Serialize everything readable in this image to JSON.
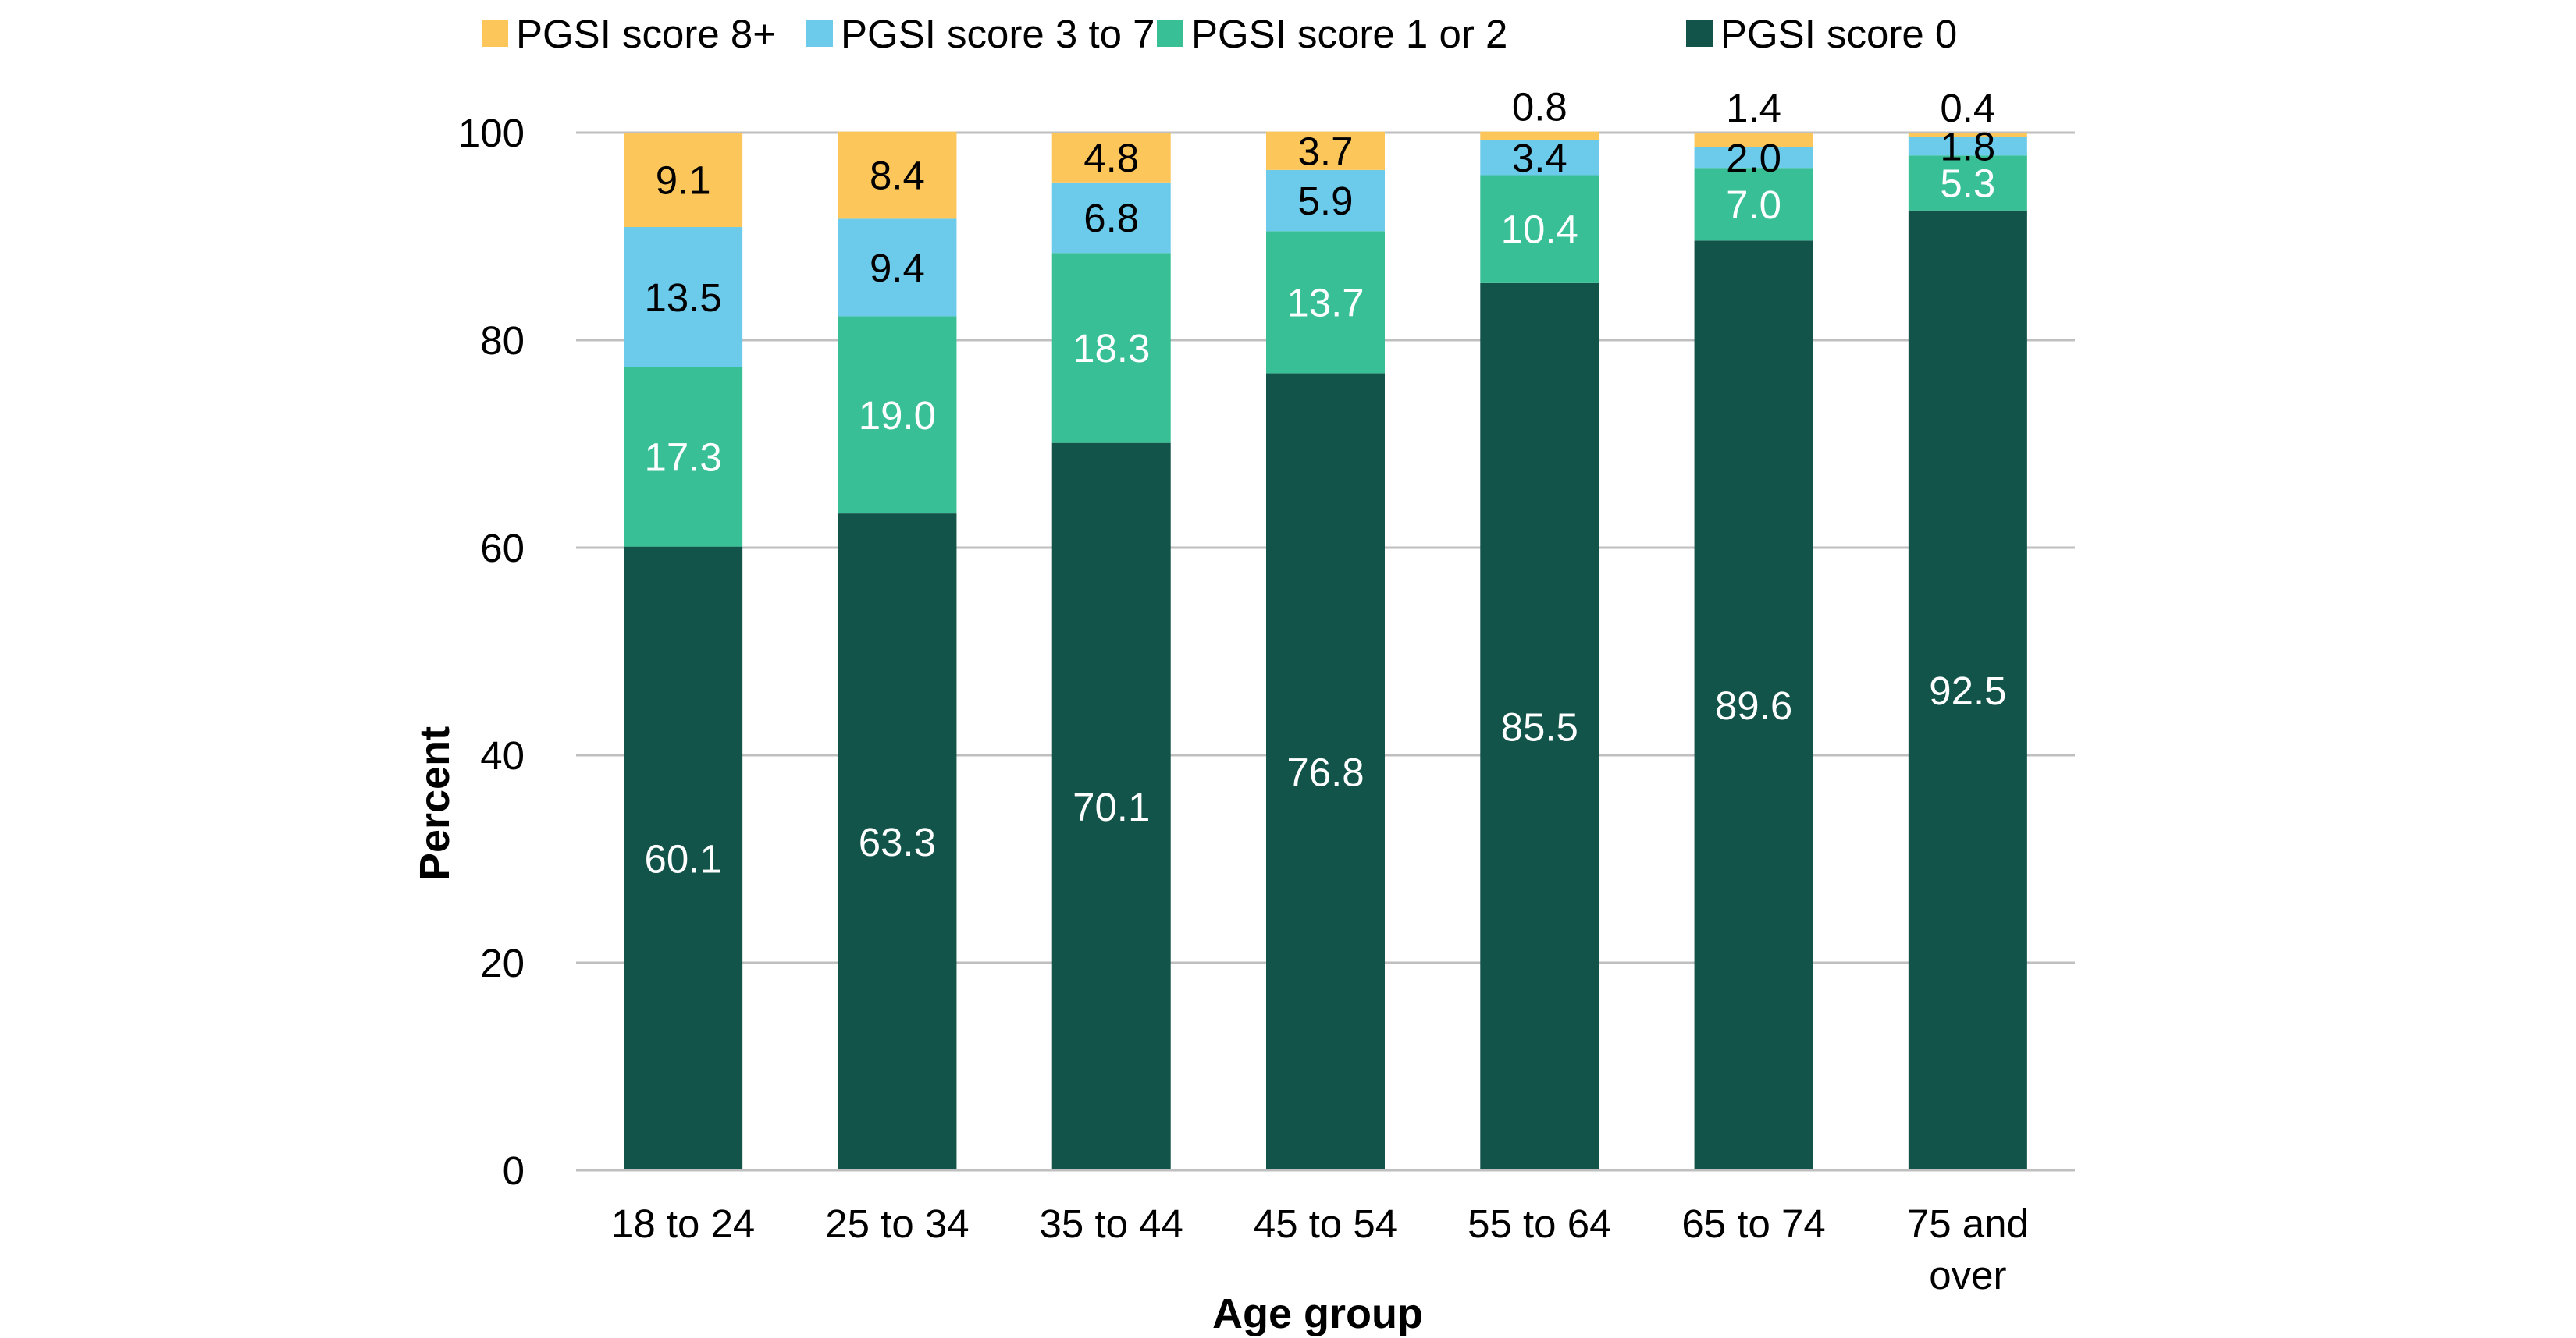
{
  "chart_data": {
    "type": "bar",
    "stacked": true,
    "xlabel": "Age group",
    "ylabel": "Percent",
    "ylim": [
      0,
      100
    ],
    "yticks": [
      0,
      20,
      40,
      60,
      80,
      100
    ],
    "grid": true,
    "legend_position": "top",
    "categories": [
      [
        "18 to 24"
      ],
      [
        "25 to 34"
      ],
      [
        "35 to 44"
      ],
      [
        "45 to 54"
      ],
      [
        "55 to 64"
      ],
      [
        "65 to 74"
      ],
      [
        "75 and",
        "over"
      ]
    ],
    "series": [
      {
        "name": "PGSI score 0",
        "color": "#12544a",
        "label_color": "#ffffff",
        "values": [
          60.1,
          63.3,
          70.1,
          76.8,
          85.5,
          89.6,
          92.5
        ]
      },
      {
        "name": "PGSI score 1 or 2",
        "color": "#38bf96",
        "label_color": "#ffffff",
        "values": [
          17.3,
          19.0,
          18.3,
          13.7,
          10.4,
          7.0,
          5.3
        ]
      },
      {
        "name": "PGSI score 3 to 7",
        "color": "#6ccaea",
        "label_color": "#000000",
        "values": [
          13.5,
          9.4,
          6.8,
          5.9,
          3.4,
          2.0,
          1.8
        ]
      },
      {
        "name": "PGSI score 8+",
        "color": "#fdc65b",
        "label_color": "#000000",
        "values": [
          9.1,
          8.4,
          4.8,
          3.7,
          0.8,
          1.4,
          0.4
        ]
      }
    ],
    "legend_order": [
      "PGSI score 8+",
      "PGSI score 3 to 7",
      "PGSI score 1 or 2",
      "PGSI score 0"
    ]
  }
}
